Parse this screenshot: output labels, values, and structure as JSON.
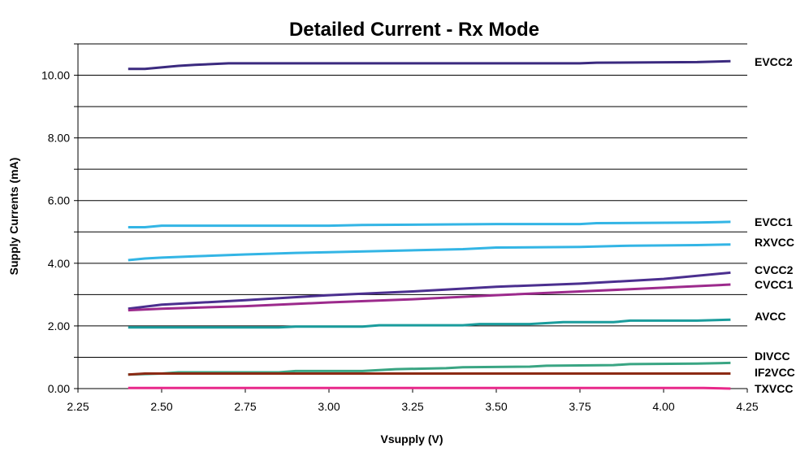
{
  "chart_data": {
    "type": "line",
    "title": "Detailed Current - Rx Mode",
    "xlabel": "Vsupply (V)",
    "ylabel": "Supply Currents (mA)",
    "xlim": [
      2.25,
      4.25
    ],
    "ylim": [
      0,
      11
    ],
    "x_ticks": [
      "2.25",
      "2.50",
      "2.75",
      "3.00",
      "3.25",
      "3.50",
      "3.75",
      "4.00",
      "4.25"
    ],
    "y_ticks": [
      "0.00",
      "2.00",
      "4.00",
      "6.00",
      "8.00",
      "10.00"
    ],
    "grid": "horizontal, every 1.00",
    "legend": "right, labels beside line ends",
    "series": [
      {
        "name": "EVCC2",
        "color": "#3b2a7f",
        "x": [
          2.4,
          2.45,
          2.5,
          2.55,
          2.6,
          2.7,
          3.0,
          3.5,
          3.75,
          3.8,
          4.1,
          4.2
        ],
        "y": [
          10.2,
          10.2,
          10.25,
          10.3,
          10.33,
          10.38,
          10.38,
          10.38,
          10.38,
          10.4,
          10.42,
          10.45
        ]
      },
      {
        "name": "EVCC1",
        "color": "#33b5e5",
        "x": [
          2.4,
          2.45,
          2.5,
          3.0,
          3.1,
          3.5,
          3.75,
          3.8,
          4.1,
          4.2
        ],
        "y": [
          5.15,
          5.15,
          5.2,
          5.2,
          5.22,
          5.25,
          5.25,
          5.28,
          5.3,
          5.32
        ]
      },
      {
        "name": "RXVCC",
        "color": "#33b5e5",
        "x": [
          2.4,
          2.45,
          2.5,
          2.6,
          2.75,
          2.9,
          3.0,
          3.2,
          3.4,
          3.5,
          3.75,
          3.9,
          4.1,
          4.2
        ],
        "y": [
          4.1,
          4.15,
          4.18,
          4.22,
          4.28,
          4.33,
          4.35,
          4.4,
          4.45,
          4.5,
          4.52,
          4.56,
          4.58,
          4.6
        ]
      },
      {
        "name": "CVCC2",
        "color": "#4b2f8f",
        "x": [
          2.4,
          2.5,
          2.75,
          3.0,
          3.25,
          3.5,
          3.75,
          4.0,
          4.2
        ],
        "y": [
          2.55,
          2.68,
          2.82,
          2.98,
          3.1,
          3.25,
          3.35,
          3.5,
          3.7
        ]
      },
      {
        "name": "CVCC1",
        "color": "#9c2a8c",
        "x": [
          2.4,
          2.5,
          2.75,
          3.0,
          3.25,
          3.5,
          3.75,
          4.0,
          4.2
        ],
        "y": [
          2.5,
          2.55,
          2.63,
          2.75,
          2.85,
          2.98,
          3.1,
          3.22,
          3.32
        ]
      },
      {
        "name": "AVCC",
        "color": "#1a9c9c",
        "x": [
          2.4,
          2.85,
          2.9,
          3.1,
          3.15,
          3.4,
          3.45,
          3.6,
          3.7,
          3.85,
          3.9,
          4.1,
          4.2
        ],
        "y": [
          1.95,
          1.95,
          1.98,
          1.98,
          2.02,
          2.02,
          2.06,
          2.06,
          2.12,
          2.12,
          2.17,
          2.17,
          2.2
        ]
      },
      {
        "name": "DIVCC",
        "color": "#3aa583",
        "x": [
          2.4,
          2.5,
          2.55,
          2.85,
          2.9,
          3.1,
          3.2,
          3.35,
          3.4,
          3.6,
          3.65,
          3.85,
          3.9,
          4.1,
          4.2
        ],
        "y": [
          0.45,
          0.48,
          0.52,
          0.52,
          0.56,
          0.56,
          0.62,
          0.65,
          0.68,
          0.7,
          0.73,
          0.75,
          0.78,
          0.8,
          0.82
        ]
      },
      {
        "name": "IF2VCC",
        "color": "#8c2a14",
        "x": [
          2.4,
          2.45,
          4.2
        ],
        "y": [
          0.45,
          0.48,
          0.48
        ]
      },
      {
        "name": "TXVCC",
        "color": "#e8288a",
        "x": [
          2.4,
          4.12,
          4.2
        ],
        "y": [
          0.02,
          0.02,
          0.0
        ]
      }
    ]
  }
}
